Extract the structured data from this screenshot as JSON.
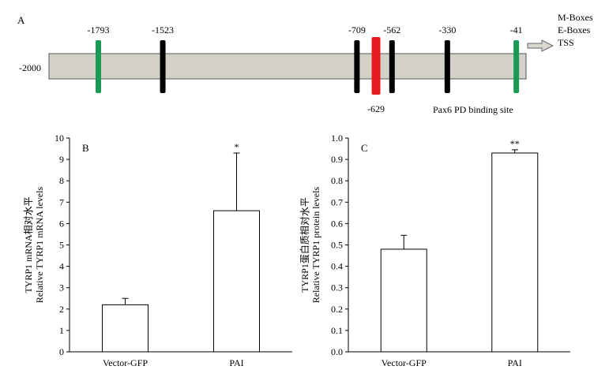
{
  "panel_a": {
    "label": "A",
    "start_label": "-2000",
    "legend": [
      "M-Boxes",
      "E-Boxes",
      "TSS"
    ],
    "binding_site_label": "Pax6 PD binding site",
    "colors": {
      "m_box": "#1a9a55",
      "e_box": "#000000",
      "pd_site": "#e8191f",
      "promoter": "#d4d1c8"
    },
    "sites": [
      {
        "label": "-1793",
        "type": "m_box",
        "position": -1793,
        "label_side": "above"
      },
      {
        "label": "-1523",
        "type": "e_box",
        "position": -1523,
        "label_side": "above"
      },
      {
        "label": "-709",
        "type": "e_box",
        "position": -709,
        "label_side": "above"
      },
      {
        "label": "-629",
        "type": "pd_site",
        "position": -629,
        "label_side": "below"
      },
      {
        "label": "-562",
        "type": "e_box",
        "position": -562,
        "label_side": "above"
      },
      {
        "label": "-330",
        "type": "e_box",
        "position": -330,
        "label_side": "above"
      },
      {
        "label": "-41",
        "type": "m_box",
        "position": -41,
        "label_side": "above"
      }
    ]
  },
  "chart_data": [
    {
      "type": "bar",
      "panel": "B",
      "categories": [
        "Vector-GFP",
        "PAI"
      ],
      "values": [
        2.2,
        6.6
      ],
      "errors": [
        0.3,
        2.7
      ],
      "significance": [
        "",
        "*"
      ],
      "ylabel_cn": "TYRP1 mRNA相对水平",
      "ylabel": "Relative TYRP1 mRNA levels",
      "ylim": [
        0,
        10
      ],
      "yticks": [
        "0",
        "1",
        "2",
        "3",
        "4",
        "5",
        "6",
        "7",
        "8",
        "9",
        "10"
      ]
    },
    {
      "type": "bar",
      "panel": "C",
      "categories": [
        "Vector-GFP",
        "PAI"
      ],
      "values": [
        0.48,
        0.93
      ],
      "errors": [
        0.065,
        0.015
      ],
      "significance": [
        "",
        "**"
      ],
      "ylabel_cn": "TYRP1蛋白质相对水平",
      "ylabel": "Relative TYRP1 protein levels",
      "ylim": [
        0,
        1
      ],
      "yticks": [
        "0.0",
        "0.1",
        "0.2",
        "0.3",
        "0.4",
        "0.5",
        "0.6",
        "0.7",
        "0.8",
        "0.9",
        "1.0"
      ]
    }
  ]
}
